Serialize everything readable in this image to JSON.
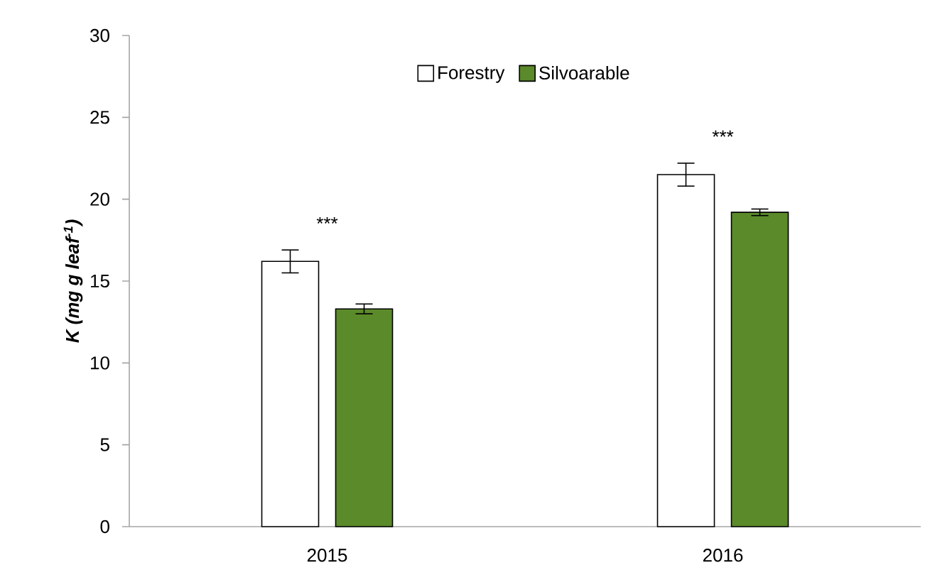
{
  "chart_data": {
    "type": "bar",
    "ylabel": "K (mg g leaf$^{-1}$)",
    "categories": [
      "2015",
      "2016"
    ],
    "series": [
      {
        "name": "Forestry",
        "color": "#ffffff",
        "values": [
          16.2,
          21.5
        ],
        "errors": [
          0.7,
          0.7
        ]
      },
      {
        "name": "Silvoarable",
        "color": "#5b8a2a",
        "values": [
          13.3,
          19.2
        ],
        "errors": [
          0.3,
          0.2
        ]
      }
    ],
    "ylim": [
      0,
      30
    ],
    "yticks": [
      0,
      5,
      10,
      15,
      20,
      25,
      30
    ],
    "legend": "top",
    "annotations": [
      "***",
      "***"
    ]
  }
}
